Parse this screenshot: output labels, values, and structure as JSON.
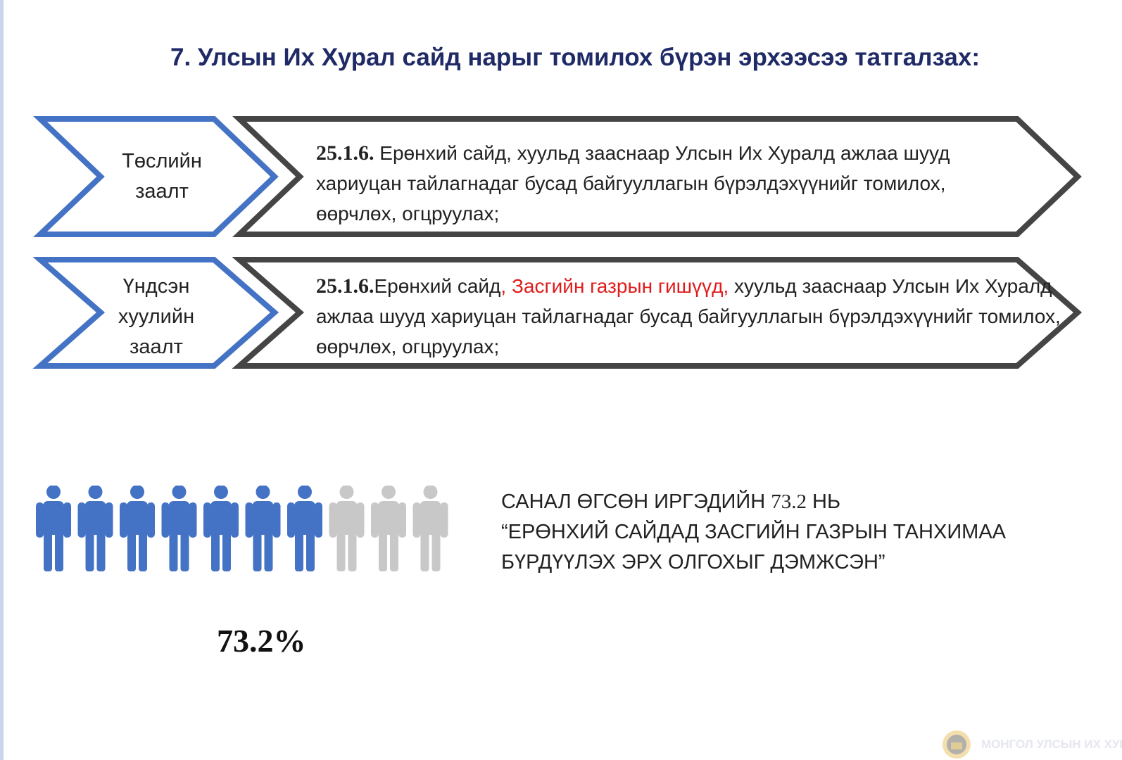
{
  "title": "7. Улсын Их Хурал сайд нарыг томилох бүрэн эрхээсээ татгалзах:",
  "rows": [
    {
      "label_lines": [
        "Төслийн",
        "заалт"
      ],
      "article": "25.1.6.",
      "segments": [
        {
          "text": " Ерөнхий сайд, хуульд зааснаар Улсын Их Хуралд ажлаа шууд хариуцан тайлагнадаг бусад байгууллагын бүрэлдэхүүнийг томилох, өөрчлөх, огцруулах;",
          "highlight": false
        }
      ]
    },
    {
      "label_lines": [
        "Үндсэн",
        "хуулийн",
        "заалт"
      ],
      "article": "25.1.6.",
      "segments": [
        {
          "text": "Ерөнхий сайд",
          "highlight": false
        },
        {
          "text": ", Засгийн газрын гишүүд,",
          "highlight": true
        },
        {
          "text": " хуульд зааснаар Улсын Их Хуралд ажлаа шууд хариуцан тайлагнадаг бусад байгууллагын бүрэлдэхүүнийг томилох, өөрчлөх, огцруулах;",
          "highlight": false
        }
      ]
    }
  ],
  "stat": {
    "line1_prefix": "САНАЛ ӨГСӨН ИРГЭДИЙН ",
    "line1_number": "73.2",
    "line1_suffix": " НЬ",
    "line2": "“ЕРӨНХИЙ САЙДАД ЗАСГИЙН ГАЗРЫН ТАНХИМАА",
    "line3": "БҮРДҮҮЛЭХ ЭРХ ОЛГОХЫГ ДЭМЖСЭН”",
    "percent_label": "73.2%",
    "share": 0.732,
    "icons_total": 10,
    "icons_filled": 7
  },
  "footer": {
    "logo_text": "МОНГОЛ УЛСЫН ИХ ХУРАЛ"
  },
  "colors": {
    "title": "#1f2a66",
    "label_chevron": "#4472c4",
    "text_chevron": "#454545",
    "highlight": "#e01b1b",
    "person_filled": "#4472c4",
    "person_empty": "#c8c8c8"
  }
}
